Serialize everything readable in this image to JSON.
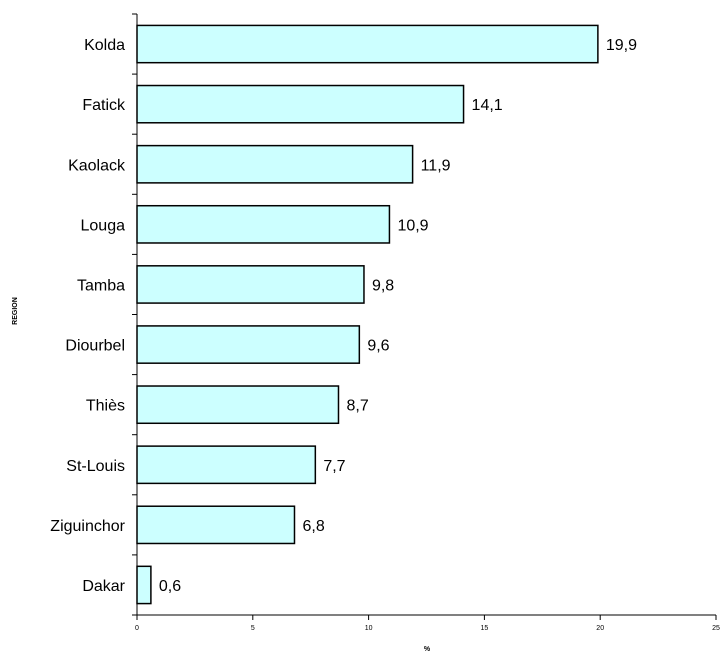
{
  "chart_data": {
    "type": "bar",
    "orientation": "horizontal",
    "categories": [
      "Kolda",
      "Fatick",
      "Kaolack",
      "Louga",
      "Tamba",
      "Diourbel",
      "Thiès",
      "St-Louis",
      "Ziguinchor",
      "Dakar"
    ],
    "values": [
      19.9,
      14.1,
      11.9,
      10.9,
      9.8,
      9.6,
      8.7,
      7.7,
      6.8,
      0.6
    ],
    "value_labels": [
      "19,9",
      "14,1",
      "11,9",
      "10,9",
      "9,8",
      "9,6",
      "8,7",
      "7,7",
      "6,8",
      "0,6"
    ],
    "xlabel": "%",
    "ylabel": "REGION",
    "xlim": [
      0,
      25
    ],
    "xticks": [
      0,
      5,
      10,
      15,
      20,
      25
    ],
    "xtick_labels": [
      "0",
      "5",
      "10",
      "15",
      "20",
      "25"
    ],
    "bar_color": "#ccffff",
    "bar_edge_color": "#000000",
    "grid": false,
    "legend": "none"
  }
}
